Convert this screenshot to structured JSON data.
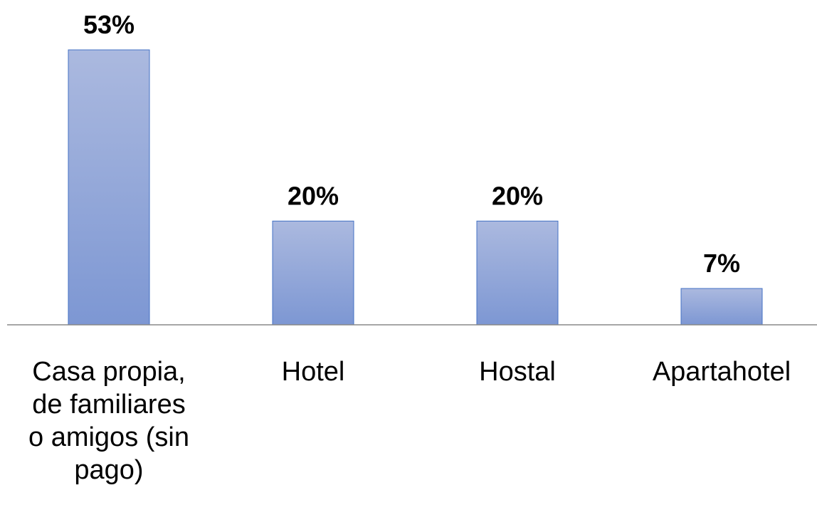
{
  "chart_data": {
    "type": "bar",
    "categories": [
      [
        "Casa propia,",
        "de familiares",
        "o amigos (sin",
        "pago)"
      ],
      [
        "Hotel"
      ],
      [
        "Hostal"
      ],
      [
        "Apartahotel"
      ]
    ],
    "values": [
      53,
      20,
      20,
      7
    ],
    "data_labels": [
      "53%",
      "20%",
      "20%",
      "7%"
    ],
    "ylim": [
      0,
      53
    ],
    "grid": false,
    "legend": "none",
    "colors": {
      "bar_fill_top": "#abb9df",
      "bar_fill_bottom": "#7d97d3",
      "bar_stroke": "#4472c4",
      "axis_line": "#888888"
    }
  }
}
